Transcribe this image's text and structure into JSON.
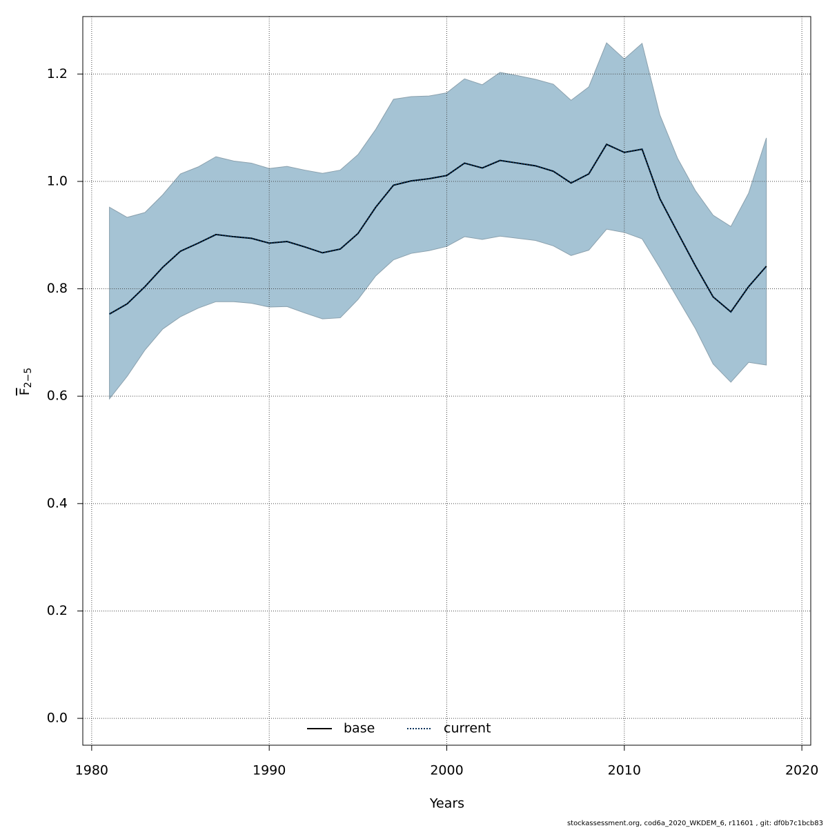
{
  "chart_data": {
    "type": "line",
    "xlabel": "Years",
    "ylabel": {
      "text": "F",
      "subscript": "2−5"
    },
    "footer": "stockassessment.org, cod6a_2020_WKDEM_6, r11601 , git: df0b7c1bcb83",
    "x": [
      1981,
      1982,
      1983,
      1984,
      1985,
      1986,
      1987,
      1988,
      1989,
      1990,
      1991,
      1992,
      1993,
      1994,
      1995,
      1996,
      1997,
      1998,
      1999,
      2000,
      2001,
      2002,
      2003,
      2004,
      2005,
      2006,
      2007,
      2008,
      2009,
      2010,
      2011,
      2012,
      2013,
      2014,
      2015,
      2016,
      2017,
      2018
    ],
    "band": {
      "color": "#a5c3d4",
      "stroke": "#8aa0ad",
      "upper": [
        0.952,
        0.933,
        0.942,
        0.975,
        1.014,
        1.027,
        1.046,
        1.038,
        1.034,
        1.024,
        1.028,
        1.021,
        1.015,
        1.021,
        1.05,
        1.097,
        1.153,
        1.158,
        1.159,
        1.165,
        1.191,
        1.18,
        1.203,
        1.197,
        1.19,
        1.181,
        1.151,
        1.176,
        1.258,
        1.228,
        1.257,
        1.124,
        1.043,
        0.983,
        0.937,
        0.916,
        0.978,
        1.081
      ],
      "lower": [
        0.595,
        0.637,
        0.686,
        0.725,
        0.748,
        0.764,
        0.776,
        0.776,
        0.773,
        0.766,
        0.767,
        0.755,
        0.744,
        0.746,
        0.78,
        0.824,
        0.854,
        0.866,
        0.871,
        0.879,
        0.897,
        0.892,
        0.898,
        0.894,
        0.89,
        0.88,
        0.862,
        0.872,
        0.911,
        0.905,
        0.893,
        0.839,
        0.782,
        0.726,
        0.66,
        0.626,
        0.663,
        0.658
      ]
    },
    "series": [
      {
        "name": "base",
        "color": "#000000",
        "dash": "none",
        "values": [
          0.753,
          0.772,
          0.804,
          0.84,
          0.87,
          0.885,
          0.901,
          0.897,
          0.894,
          0.885,
          0.888,
          0.878,
          0.867,
          0.874,
          0.903,
          0.952,
          0.993,
          1.001,
          1.005,
          1.011,
          1.034,
          1.025,
          1.039,
          1.034,
          1.029,
          1.019,
          0.997,
          1.014,
          1.069,
          1.054,
          1.06,
          0.968,
          0.905,
          0.843,
          0.785,
          0.757,
          0.804,
          0.842
        ]
      },
      {
        "name": "current",
        "color": "#00305a",
        "dash": "2,2",
        "values": [
          0.753,
          0.772,
          0.804,
          0.84,
          0.87,
          0.885,
          0.901,
          0.897,
          0.894,
          0.885,
          0.888,
          0.878,
          0.867,
          0.874,
          0.903,
          0.952,
          0.993,
          1.001,
          1.005,
          1.011,
          1.034,
          1.025,
          1.039,
          1.034,
          1.029,
          1.019,
          0.997,
          1.014,
          1.069,
          1.054,
          1.06,
          0.968,
          0.905,
          0.843,
          0.785,
          0.757,
          0.804,
          0.842
        ]
      }
    ],
    "xlim": [
      1979.5,
      2020.5
    ],
    "ylim": [
      -0.05,
      1.307
    ],
    "xticks": [
      1980,
      1990,
      2000,
      2010,
      2020
    ],
    "yticks": [
      {
        "value": 0,
        "label": "0.0"
      },
      0.2,
      0.4,
      0.6,
      0.8,
      {
        "value": 1,
        "label": "1.0"
      },
      1.2
    ],
    "grid": true,
    "legend": "bottom"
  }
}
